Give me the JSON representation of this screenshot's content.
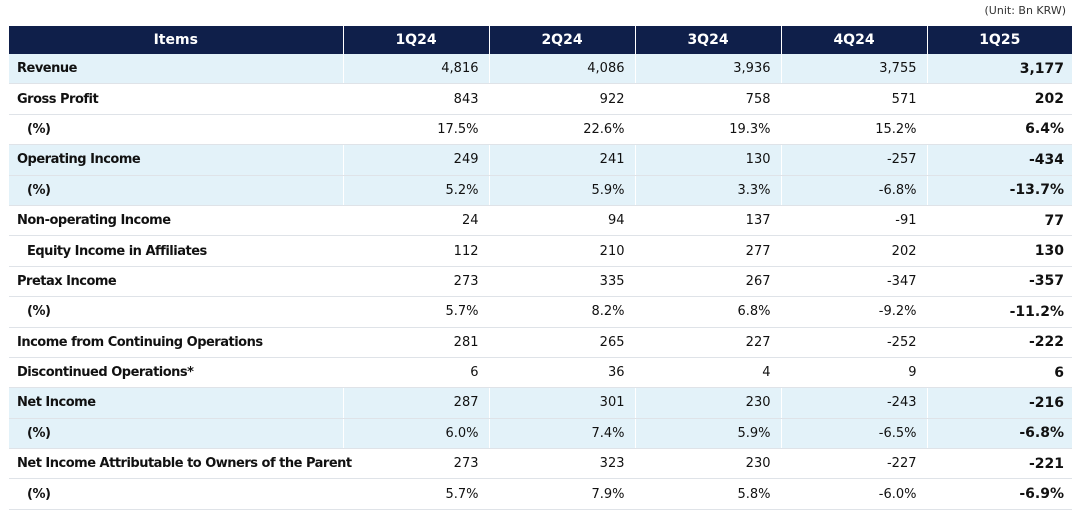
{
  "unit_note": "(Unit: Bn KRW)",
  "headers": [
    "Items",
    "1Q24",
    "2Q24",
    "3Q24",
    "4Q24",
    "1Q25"
  ],
  "rows": [
    {
      "label": "Revenue",
      "values": [
        "4,816",
        "4,086",
        "3,936",
        "3,755",
        "3,177"
      ]
    },
    {
      "label": "Gross Profit",
      "values": [
        "843",
        "922",
        "758",
        "571",
        "202"
      ]
    },
    {
      "label": "(%)",
      "values": [
        "17.5%",
        "22.6%",
        "19.3%",
        "15.2%",
        "6.4%"
      ]
    },
    {
      "label": "Operating Income",
      "values": [
        "249",
        "241",
        "130",
        "-257",
        "-434"
      ]
    },
    {
      "label": "(%)",
      "values": [
        "5.2%",
        "5.9%",
        "3.3%",
        "-6.8%",
        "-13.7%"
      ]
    },
    {
      "label": "Non-operating Income",
      "values": [
        "24",
        "94",
        "137",
        "-91",
        "77"
      ]
    },
    {
      "label": "Equity Income in Affiliates",
      "values": [
        "112",
        "210",
        "277",
        "202",
        "130"
      ]
    },
    {
      "label": "Pretax Income",
      "values": [
        "273",
        "335",
        "267",
        "-347",
        "-357"
      ]
    },
    {
      "label": "(%)",
      "values": [
        "5.7%",
        "8.2%",
        "6.8%",
        "-9.2%",
        "-11.2%"
      ]
    },
    {
      "label": "Income from Continuing Operations",
      "values": [
        "281",
        "265",
        "227",
        "-252",
        "-222"
      ]
    },
    {
      "label": "Discontinued Operations*",
      "values": [
        "6",
        "36",
        "4",
        "9",
        "6"
      ]
    },
    {
      "label": "Net Income",
      "values": [
        "287",
        "301",
        "230",
        "-243",
        "-216"
      ]
    },
    {
      "label": "(%)",
      "values": [
        "6.0%",
        "7.4%",
        "5.9%",
        "-6.5%",
        "-6.8%"
      ]
    },
    {
      "label": "Net Income Attributable to Owners of the Parent",
      "values": [
        "273",
        "323",
        "230",
        "-227",
        "-221"
      ]
    },
    {
      "label": "(%)",
      "values": [
        "5.7%",
        "7.9%",
        "5.8%",
        "-6.0%",
        "-6.9%"
      ]
    }
  ],
  "colors": {
    "header_bg": "#0f1f4a",
    "row_highlight": "#e3f2f9"
  }
}
